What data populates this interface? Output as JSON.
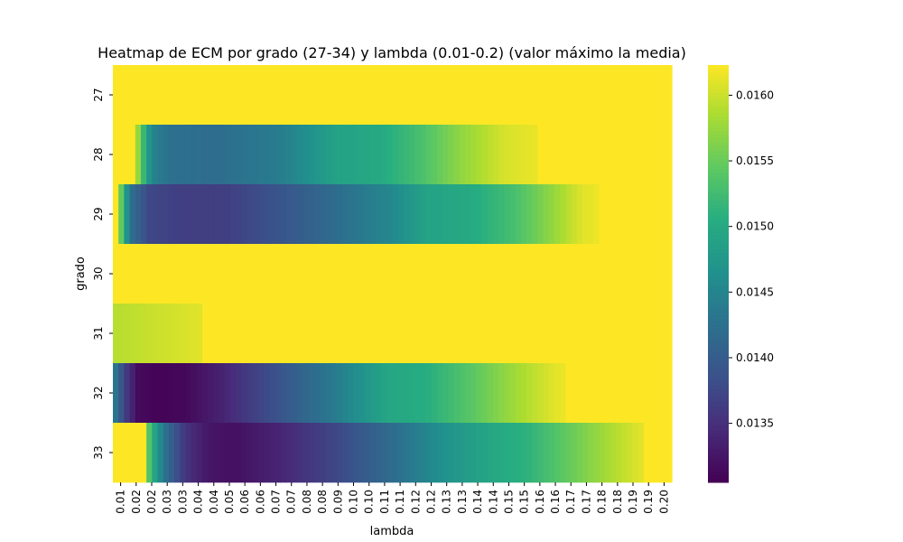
{
  "chart_data": {
    "type": "heatmap",
    "title": "Heatmap de ECM por grado (27-34) y lambda (0.01-0.2) (valor máximo la media)",
    "xlabel": "lambda",
    "ylabel": "grado",
    "x_tick_labels": [
      "0.01",
      "0.02",
      "0.02",
      "0.03",
      "0.03",
      "0.04",
      "0.04",
      "0.05",
      "0.06",
      "0.06",
      "0.07",
      "0.07",
      "0.08",
      "0.08",
      "0.09",
      "0.10",
      "0.10",
      "0.11",
      "0.11",
      "0.12",
      "0.12",
      "0.13",
      "0.13",
      "0.14",
      "0.14",
      "0.15",
      "0.15",
      "0.16",
      "0.16",
      "0.17",
      "0.17",
      "0.18",
      "0.18",
      "0.19",
      "0.19",
      "0.20"
    ],
    "rows": [
      "27",
      "28",
      "29",
      "30",
      "31",
      "32",
      "33"
    ],
    "x_range": [
      0.01,
      0.2
    ],
    "colorbar": {
      "min": 0.01305,
      "max": 0.01623,
      "ticks": [
        "0.0135",
        "0.0140",
        "0.0145",
        "0.0150",
        "0.0155",
        "0.0160"
      ],
      "tick_values": [
        0.0135,
        0.014,
        0.0145,
        0.015,
        0.0155,
        0.016
      ],
      "colormap": "viridis"
    },
    "column_count": 100,
    "row_profiles": [
      {
        "grado": "27",
        "points": [
          [
            0,
            0.01623
          ],
          [
            100,
            0.01623
          ]
        ]
      },
      {
        "grado": "28",
        "points": [
          [
            0,
            0.01623
          ],
          [
            3.5,
            0.01623
          ],
          [
            4.0,
            0.016
          ],
          [
            5.0,
            0.0155
          ],
          [
            6.0,
            0.0149
          ],
          [
            7.0,
            0.0145
          ],
          [
            10,
            0.01425
          ],
          [
            18,
            0.0142
          ],
          [
            30,
            0.0144
          ],
          [
            40,
            0.0149
          ],
          [
            48,
            0.015
          ],
          [
            55,
            0.0153
          ],
          [
            62,
            0.0157
          ],
          [
            70,
            0.01605
          ],
          [
            76,
            0.01615
          ],
          [
            76.5,
            0.01623
          ],
          [
            100,
            0.01623
          ]
        ]
      },
      {
        "grado": "29",
        "points": [
          [
            0,
            0.01623
          ],
          [
            1.0,
            0.01623
          ],
          [
            1.2,
            0.0158
          ],
          [
            2.0,
            0.0149
          ],
          [
            3.5,
            0.0142
          ],
          [
            6.5,
            0.01375
          ],
          [
            12,
            0.01365
          ],
          [
            20,
            0.01365
          ],
          [
            30,
            0.0139
          ],
          [
            40,
            0.0142
          ],
          [
            50,
            0.01455
          ],
          [
            56,
            0.0149
          ],
          [
            64,
            0.015
          ],
          [
            72,
            0.0153
          ],
          [
            79,
            0.01575
          ],
          [
            84,
            0.0161
          ],
          [
            86.5,
            0.01615
          ],
          [
            86.6,
            0.01623
          ],
          [
            100,
            0.01623
          ]
        ]
      },
      {
        "grado": "30",
        "points": [
          [
            0,
            0.01623
          ],
          [
            100,
            0.01623
          ]
        ]
      },
      {
        "grado": "31",
        "points": [
          [
            0,
            0.0159
          ],
          [
            8,
            0.016
          ],
          [
            16,
            0.0161
          ],
          [
            16.2,
            0.01623
          ],
          [
            100,
            0.01623
          ]
        ]
      },
      {
        "grado": "32",
        "points": [
          [
            0,
            0.0145
          ],
          [
            1.2,
            0.014
          ],
          [
            2.5,
            0.0136
          ],
          [
            4.5,
            0.01315
          ],
          [
            8,
            0.01308
          ],
          [
            13,
            0.01312
          ],
          [
            20,
            0.0134
          ],
          [
            30,
            0.0139
          ],
          [
            40,
            0.0144
          ],
          [
            49,
            0.01495
          ],
          [
            56,
            0.01505
          ],
          [
            64,
            0.0154
          ],
          [
            72,
            0.0158
          ],
          [
            79,
            0.0161
          ],
          [
            81,
            0.01616
          ],
          [
            81.2,
            0.01623
          ],
          [
            100,
            0.01623
          ]
        ]
      },
      {
        "grado": "33",
        "points": [
          [
            0,
            0.01623
          ],
          [
            6.0,
            0.01623
          ],
          [
            6.2,
            0.0155
          ],
          [
            8,
            0.0147
          ],
          [
            10,
            0.0141
          ],
          [
            13,
            0.01355
          ],
          [
            17,
            0.01325
          ],
          [
            22,
            0.0132
          ],
          [
            30,
            0.0134
          ],
          [
            40,
            0.01375
          ],
          [
            50,
            0.0142
          ],
          [
            60,
            0.0147
          ],
          [
            67,
            0.01495
          ],
          [
            74,
            0.0151
          ],
          [
            82,
            0.0155
          ],
          [
            90,
            0.0159
          ],
          [
            95,
            0.01612
          ],
          [
            95.2,
            0.01623
          ],
          [
            100,
            0.01623
          ]
        ]
      }
    ]
  }
}
